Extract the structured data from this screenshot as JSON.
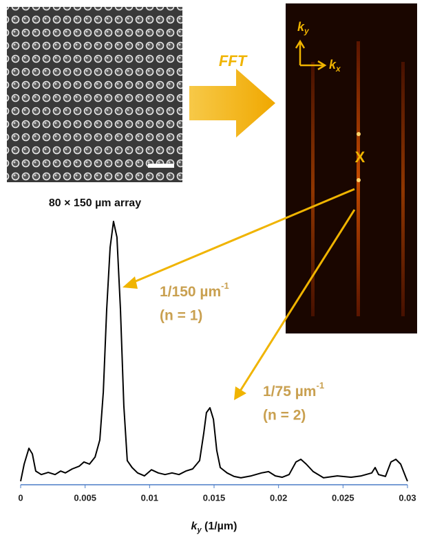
{
  "images": {
    "caption": "80 × 150 µm array",
    "transform_label": "FFT",
    "origin_marker": "X",
    "ky": {
      "symbol": "k",
      "sub": "y"
    },
    "kx": {
      "symbol": "k",
      "sub": "x"
    }
  },
  "chart_data": {
    "type": "line",
    "x": [
      0,
      0.00027,
      0.00064,
      0.00091,
      0.00117,
      0.0016,
      0.00214,
      0.00267,
      0.0031,
      0.00347,
      0.004,
      0.00454,
      0.00491,
      0.00534,
      0.00577,
      0.00614,
      0.00641,
      0.00667,
      0.00694,
      0.0072,
      0.00747,
      0.00774,
      0.008,
      0.00827,
      0.00864,
      0.00907,
      0.0096,
      0.01014,
      0.01067,
      0.0112,
      0.01174,
      0.01228,
      0.01281,
      0.01334,
      0.01388,
      0.0142,
      0.01441,
      0.01468,
      0.01495,
      0.01521,
      0.01548,
      0.01601,
      0.01655,
      0.01708,
      0.01788,
      0.01868,
      0.01922,
      0.01975,
      0.02029,
      0.02082,
      0.02135,
      0.02173,
      0.02215,
      0.02269,
      0.02349,
      0.02456,
      0.02562,
      0.02642,
      0.02723,
      0.02749,
      0.02776,
      0.02829,
      0.02872,
      0.0291,
      0.02947,
      0.02989,
      0.03
    ],
    "values": [
      0.013,
      0.077,
      0.136,
      0.115,
      0.051,
      0.038,
      0.046,
      0.038,
      0.051,
      0.044,
      0.059,
      0.069,
      0.085,
      0.077,
      0.103,
      0.167,
      0.346,
      0.654,
      0.885,
      0.982,
      0.923,
      0.654,
      0.295,
      0.09,
      0.064,
      0.044,
      0.033,
      0.056,
      0.044,
      0.038,
      0.044,
      0.038,
      0.051,
      0.059,
      0.09,
      0.192,
      0.269,
      0.287,
      0.244,
      0.128,
      0.064,
      0.044,
      0.031,
      0.026,
      0.033,
      0.044,
      0.049,
      0.033,
      0.028,
      0.038,
      0.085,
      0.095,
      0.077,
      0.049,
      0.026,
      0.033,
      0.028,
      0.033,
      0.044,
      0.064,
      0.038,
      0.031,
      0.085,
      0.095,
      0.077,
      0.026,
      0.013
    ],
    "color": "#000000",
    "xlim": [
      0,
      0.03
    ],
    "xticks": [
      0,
      0.005,
      0.01,
      0.015,
      0.02,
      0.025,
      0.03
    ],
    "ylim": [
      0,
      1
    ],
    "x_label": {
      "symbol": "k",
      "sub": "y",
      "rest": " (1/µm)"
    },
    "annotations": [
      {
        "text": "1/150 µm",
        "sup": "-1",
        "note": "(n = 1)"
      },
      {
        "text": "1/75 µm",
        "sup": "-1",
        "note": "(n = 2)"
      }
    ]
  }
}
